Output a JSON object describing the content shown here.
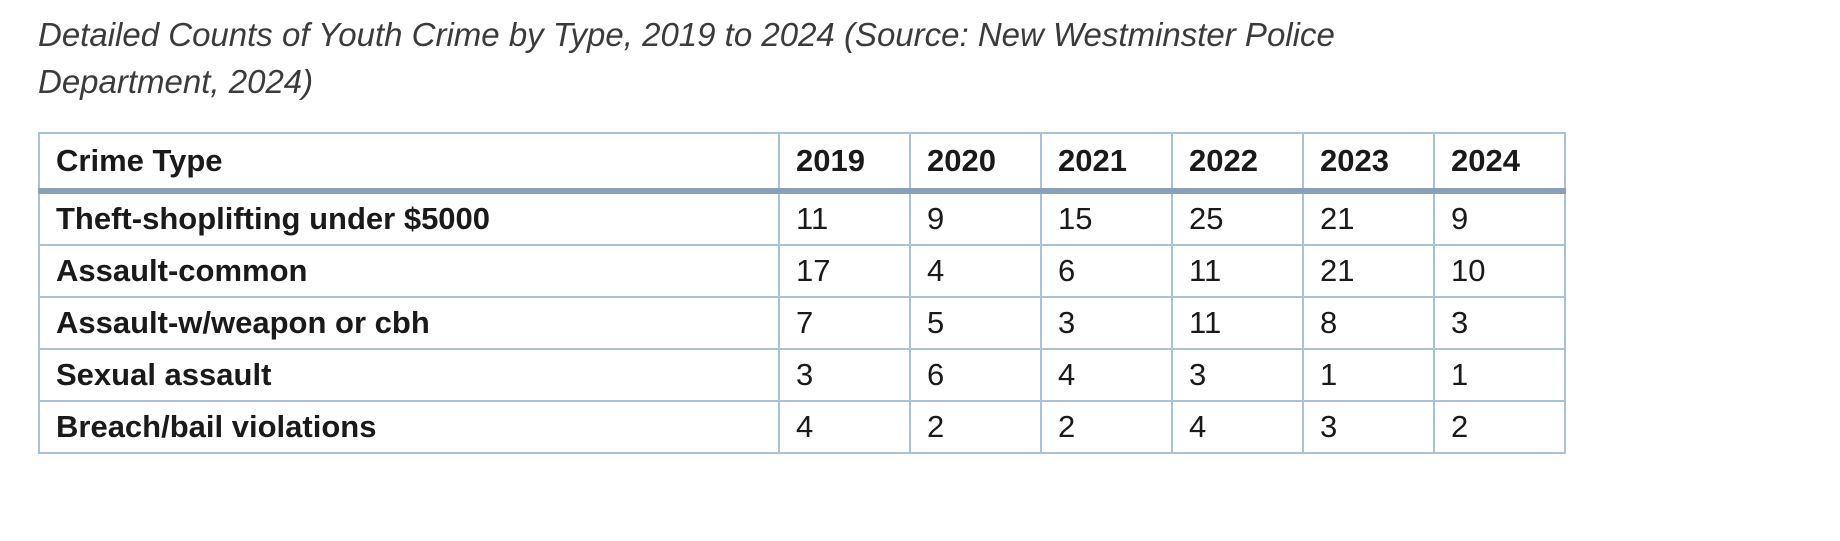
{
  "caption": "Detailed Counts of Youth Crime by Type, 2019 to 2024 (Source: New Westminster Police Department, 2024)",
  "colors": {
    "table_border": "#a9c2d8",
    "header_underline": "#8a9fb8",
    "caption_text": "#3b3b3b",
    "table_text": "#1a1a1a"
  },
  "table": {
    "headers": [
      "Crime Type",
      "2019",
      "2020",
      "2021",
      "2022",
      "2023",
      "2024"
    ],
    "rows": [
      {
        "crime_type": "Theft-shoplifting under $5000",
        "values": [
          "11",
          "9",
          "15",
          "25",
          "21",
          "9"
        ]
      },
      {
        "crime_type": "Assault-common",
        "values": [
          "17",
          "4",
          "6",
          "11",
          "21",
          "10"
        ]
      },
      {
        "crime_type": "Assault-w/weapon or cbh",
        "values": [
          "7",
          "5",
          "3",
          "11",
          "8",
          "3"
        ]
      },
      {
        "crime_type": "Sexual assault",
        "values": [
          "3",
          "6",
          "4",
          "3",
          "1",
          "1"
        ]
      },
      {
        "crime_type": "Breach/bail violations",
        "values": [
          "4",
          "2",
          "2",
          "4",
          "3",
          "2"
        ]
      }
    ]
  }
}
